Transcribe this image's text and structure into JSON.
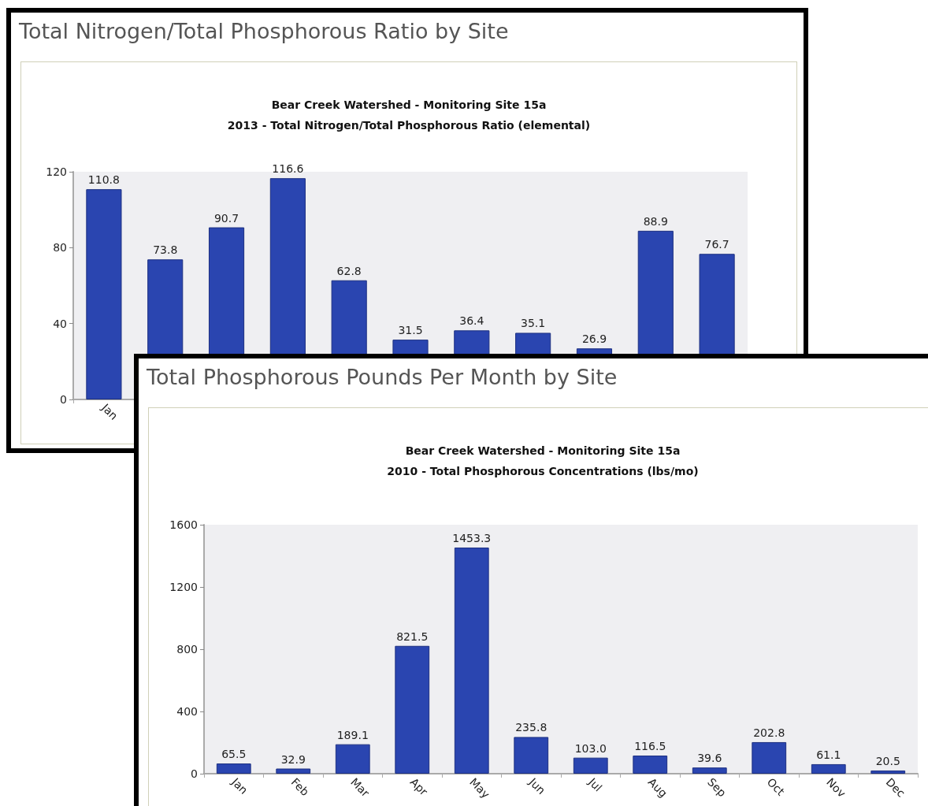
{
  "chart_data": [
    {
      "type": "bar",
      "title": "Total Nitrogen/Total Phosphorous Ratio by Site",
      "subtitle": "Bear Creek Watershed - Monitoring Site 15a\n2013 - Total Nitrogen/Total Phosphorous Ratio (elemental)",
      "categories": [
        "Jan",
        null,
        null,
        null,
        null,
        null,
        null,
        null,
        null,
        null,
        null
      ],
      "values": [
        110.8,
        73.8,
        90.7,
        116.6,
        62.8,
        31.5,
        36.4,
        35.1,
        26.9,
        88.9,
        76.7
      ],
      "color": "#2a45b0",
      "ylim": [
        0,
        120
      ],
      "yticks": [
        0,
        40,
        80,
        120
      ],
      "data_labels": true
    },
    {
      "type": "bar",
      "title": "Total Phosphorous Pounds Per Month by Site",
      "subtitle": "Bear Creek Watershed - Monitoring Site 15a\n2010 - Total Phosphorous Concentrations (lbs/mo)",
      "categories": [
        "Jan",
        "Feb",
        "Mar",
        "Apr",
        "May",
        "Jun",
        "Jul",
        "Aug",
        "Sep",
        "Oct",
        "Nov",
        "Dec"
      ],
      "values": [
        65.5,
        32.9,
        189.1,
        821.5,
        1453.3,
        235.8,
        103.0,
        116.5,
        39.6,
        202.8,
        61.1,
        20.5
      ],
      "value_labels": [
        "65.5",
        "32.9",
        "189.1",
        "821.5",
        "1453.3",
        "235.8",
        "103.0",
        "116.5",
        "39.6",
        "202.8",
        "61.1",
        "20.5"
      ],
      "color": "#2a45b0",
      "ylim": [
        0,
        1600
      ],
      "yticks": [
        0,
        400,
        800,
        1200,
        1600
      ]
    }
  ]
}
